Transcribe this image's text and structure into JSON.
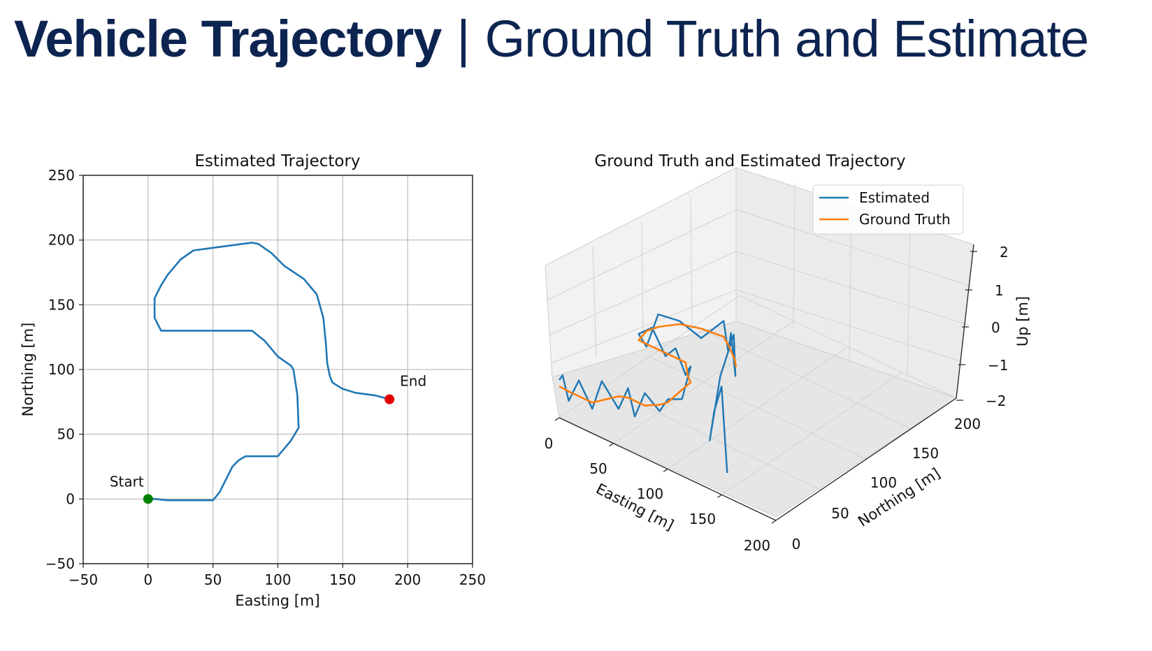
{
  "slide": {
    "title_bold": "Vehicle Trajectory",
    "title_separator": "|",
    "title_rest": "Ground Truth and Estimate"
  },
  "chart_data": [
    {
      "type": "line",
      "title": "Estimated Trajectory",
      "xlabel": "Easting [m]",
      "ylabel": "Northing [m]",
      "xlim": [
        -50,
        250
      ],
      "ylim": [
        -50,
        250
      ],
      "xticks": [
        -50,
        0,
        50,
        100,
        150,
        200,
        250
      ],
      "yticks": [
        -50,
        0,
        50,
        100,
        150,
        200,
        250
      ],
      "xtick_labels": [
        "−50",
        "0",
        "50",
        "100",
        "150",
        "200",
        "250"
      ],
      "ytick_labels": [
        "−50",
        "0",
        "50",
        "100",
        "150",
        "200",
        "250"
      ],
      "grid": true,
      "line_color": "#1f77b4",
      "series": [
        {
          "x": [
            0,
            5,
            15,
            30,
            40,
            50,
            55,
            60,
            65,
            70,
            75,
            85,
            95,
            100,
            110,
            116,
            115,
            112,
            110,
            100,
            90,
            80,
            70,
            60,
            50,
            35,
            25,
            10,
            5,
            5,
            10,
            15,
            25,
            35,
            50,
            65,
            80,
            85,
            95,
            105,
            120,
            130,
            135,
            137,
            138,
            140,
            142,
            145,
            150,
            160,
            175,
            186
          ],
          "y": [
            0,
            0,
            -1,
            -1,
            -1,
            -1,
            5,
            15,
            25,
            30,
            33,
            33,
            33,
            33,
            45,
            55,
            80,
            100,
            103,
            110,
            122,
            130,
            130,
            130,
            130,
            130,
            130,
            130,
            140,
            155,
            165,
            173,
            185,
            192,
            194,
            196,
            198,
            197,
            190,
            180,
            170,
            158,
            140,
            120,
            105,
            95,
            90,
            88,
            85,
            82,
            80,
            77
          ]
        }
      ],
      "markers": [
        {
          "label": "Start",
          "x": 0,
          "y": 0,
          "color": "#008000"
        },
        {
          "label": "End",
          "x": 186,
          "y": 77,
          "color": "#e00000"
        }
      ]
    },
    {
      "type": "line",
      "subtype": "3d",
      "title": "Ground Truth and Estimated Trajectory",
      "xlabel": "Easting [m]",
      "ylabel": "Northing [m]",
      "zlabel": "Up [m]",
      "xlim": [
        0,
        200
      ],
      "ylim": [
        0,
        200
      ],
      "zlim": [
        -2,
        2
      ],
      "xticks": [
        "0",
        "50",
        "100",
        "150",
        "200"
      ],
      "yticks": [
        "0",
        "50",
        "100",
        "150",
        "200"
      ],
      "zticks": [
        "−2",
        "−1",
        "0",
        "1",
        "2"
      ],
      "legend": {
        "position": "upper-right",
        "entries": [
          "Estimated",
          "Ground Truth"
        ]
      },
      "series": [
        {
          "name": "Estimated",
          "color": "#1f77b4",
          "x": [
            0,
            5,
            15,
            30,
            50,
            55,
            65,
            75,
            85,
            100,
            112,
            116,
            112,
            110,
            100,
            80,
            65,
            50,
            30,
            10,
            5,
            10,
            25,
            50,
            80,
            95,
            110,
            125,
            135,
            140,
            145,
            160,
            175,
            186
          ],
          "y": [
            0,
            0,
            -1,
            -1,
            -1,
            10,
            28,
            33,
            33,
            33,
            45,
            55,
            85,
            103,
            110,
            130,
            130,
            130,
            130,
            130,
            150,
            165,
            185,
            194,
            198,
            188,
            175,
            165,
            150,
            120,
            95,
            85,
            80,
            77
          ],
          "z": [
            0.2,
            0.4,
            -0.3,
            0.5,
            -0.2,
            0.6,
            -0.4,
            0.3,
            -0.5,
            0.4,
            -0.2,
            0.1,
            -0.3,
            0.5,
            0.2,
            -0.4,
            0.3,
            -0.1,
            0.6,
            0.2,
            -0.5,
            0.4,
            0.1,
            -0.3,
            0.5,
            -0.2,
            0.7,
            -0.4,
            1.2,
            0.3,
            -1.4,
            -0.2,
            0.8,
            -1.8
          ]
        },
        {
          "name": "Ground Truth",
          "color": "#ff7f0e",
          "x": [
            0,
            15,
            30,
            50,
            65,
            75,
            100,
            112,
            116,
            112,
            110,
            100,
            80,
            50,
            25,
            10,
            5,
            10,
            25,
            50,
            80,
            100,
            120,
            130
          ],
          "y": [
            0,
            -1,
            -1,
            -1,
            28,
            33,
            33,
            45,
            55,
            85,
            103,
            110,
            130,
            130,
            130,
            130,
            150,
            165,
            185,
            194,
            198,
            185,
            170,
            160
          ],
          "z": [
            0,
            0,
            0,
            0,
            0,
            0,
            0,
            0,
            0,
            0,
            0,
            0,
            0,
            0,
            0,
            0,
            0,
            0,
            0,
            0,
            0,
            0,
            0,
            0
          ]
        }
      ]
    }
  ]
}
